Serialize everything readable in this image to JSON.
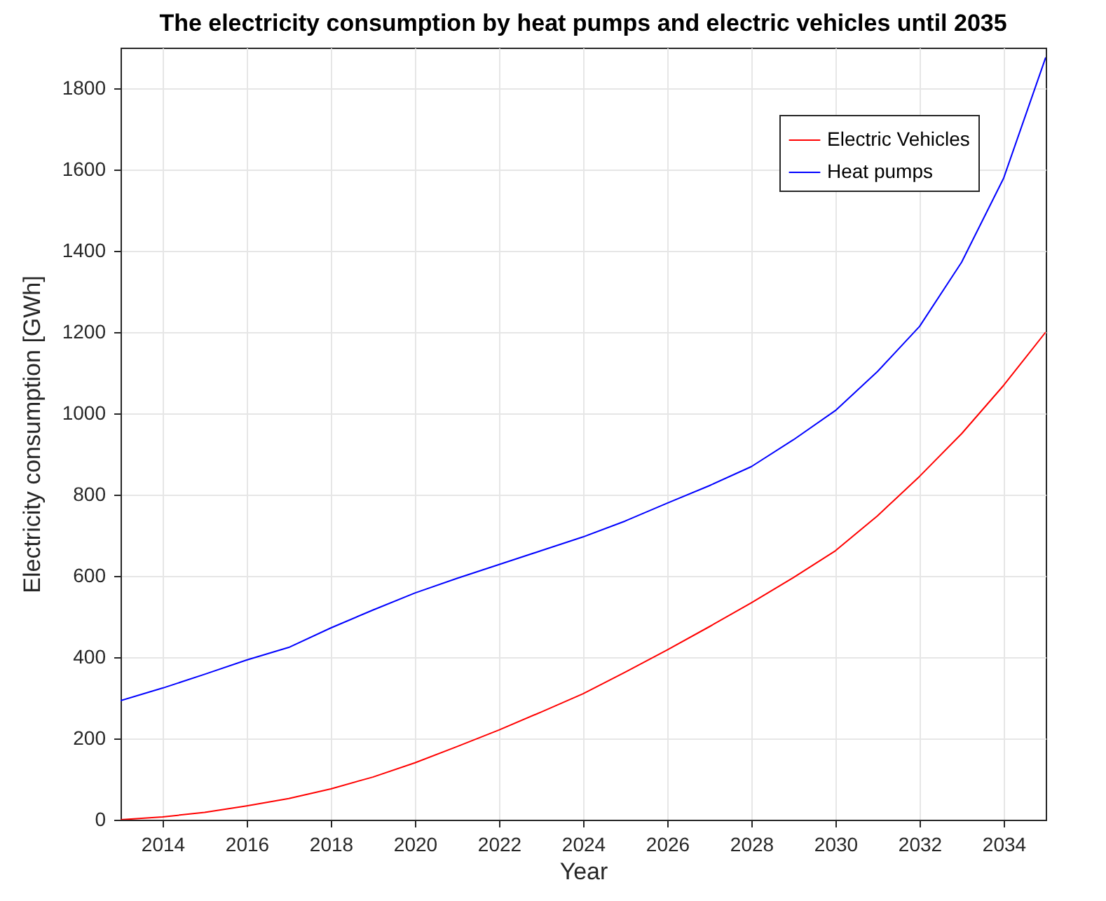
{
  "chart_data": {
    "type": "line",
    "title": "The electricity consumption by heat pumps and electric vehicles until 2035",
    "xlabel": "Year",
    "ylabel": "Electricity consumption [GWh]",
    "x": [
      2013,
      2014,
      2015,
      2016,
      2017,
      2018,
      2019,
      2020,
      2021,
      2022,
      2023,
      2024,
      2025,
      2026,
      2027,
      2028,
      2029,
      2030,
      2031,
      2032,
      2033,
      2034,
      2035
    ],
    "series": [
      {
        "name": "Electric Vehicles",
        "color": "#ff0000",
        "values": [
          0,
          7,
          18,
          34,
          52,
          76,
          105,
          140,
          180,
          221,
          265,
          310,
          363,
          418,
          475,
          534,
          596,
          662,
          748,
          845,
          950,
          1069,
          1200
        ]
      },
      {
        "name": "Heat pumps",
        "color": "#0000ff",
        "values": [
          293,
          324,
          358,
          393,
          424,
          472,
          516,
          558,
          594,
          628,
          662,
          696,
          735,
          779,
          822,
          869,
          935,
          1007,
          1103,
          1214,
          1372,
          1579,
          1876
        ]
      }
    ],
    "xlim": [
      2013,
      2035
    ],
    "ylim": [
      0,
      1900
    ],
    "xticks": [
      2014,
      2016,
      2018,
      2020,
      2022,
      2024,
      2026,
      2028,
      2030,
      2032,
      2034
    ],
    "yticks": [
      0,
      200,
      400,
      600,
      800,
      1000,
      1200,
      1400,
      1600,
      1800
    ],
    "grid": true,
    "legend": "top right"
  }
}
